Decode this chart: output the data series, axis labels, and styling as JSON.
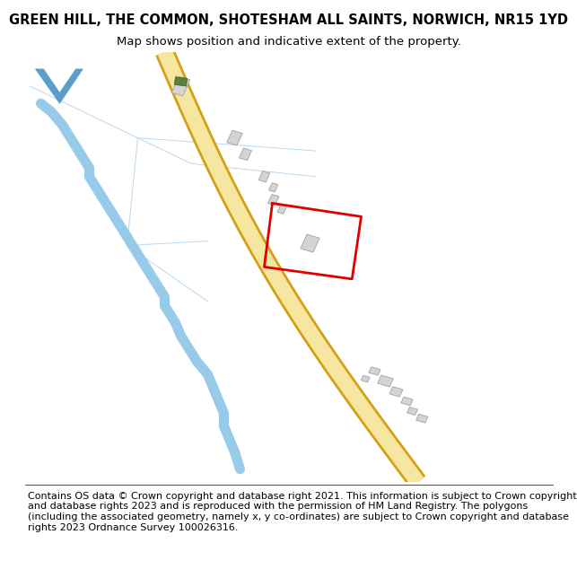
{
  "title": "GREEN HILL, THE COMMON, SHOTESHAM ALL SAINTS, NORWICH, NR15 1YD",
  "subtitle": "Map shows position and indicative extent of the property.",
  "footer": "Contains OS data © Crown copyright and database right 2021. This information is subject to Crown copyright and database rights 2023 and is reproduced with the permission of HM Land Registry. The polygons (including the associated geometry, namely x, y co-ordinates) are subject to Crown copyright and database rights 2023 Ordnance Survey 100026316.",
  "bg_color": "#ffffff",
  "map_bg": "#f2f2ee",
  "title_fontsize": 10.5,
  "subtitle_fontsize": 9.5,
  "footer_fontsize": 8.0,
  "road_edge_color": "#d4a017",
  "road_fill_color": "#f5e6a0",
  "river_color": "#8dc6e8",
  "boundary_color": "#b8d8f0",
  "building_color": "#d4d4d4",
  "building_edge_color": "#aaaaaa",
  "red_plot_color": "#e00000",
  "chevron_color": "#5b9ec9"
}
